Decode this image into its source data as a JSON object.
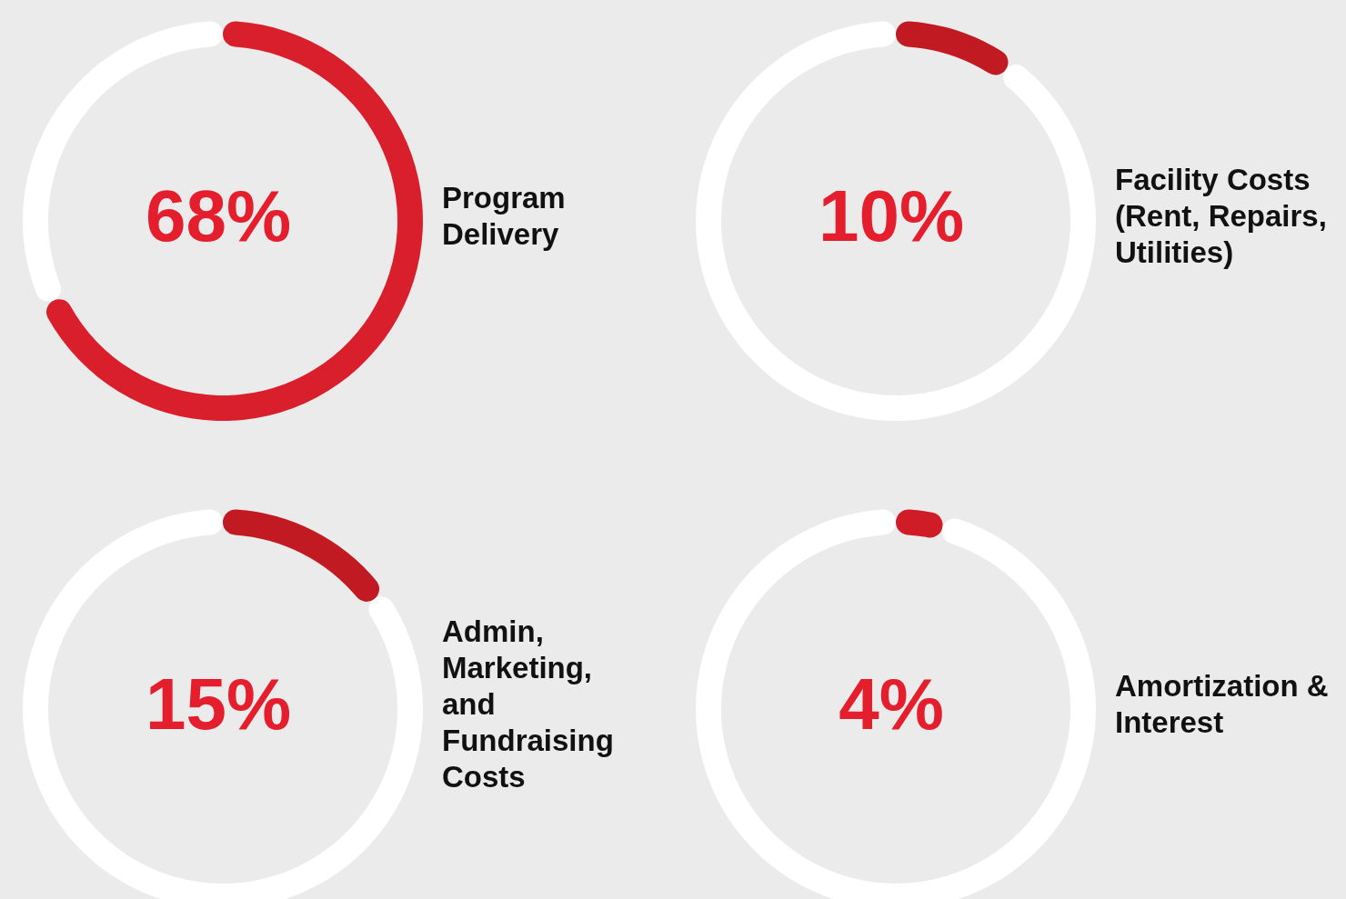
{
  "chart_data": [
    {
      "type": "donut",
      "title": "Program Delivery",
      "categories": [
        null,
        null
      ],
      "values": [
        68,
        32
      ],
      "colors": [
        "#d81f2b",
        "#ffffff"
      ],
      "annotations": [
        "68%"
      ]
    },
    {
      "type": "donut",
      "title": "Facility Costs (Rent, Repairs, Utilities)",
      "categories": [
        null,
        null
      ],
      "values": [
        10,
        90
      ],
      "colors": [
        "#c11a22",
        "#ffffff"
      ],
      "annotations": [
        "10%"
      ]
    },
    {
      "type": "donut",
      "title": "Admin, Marketing, and Fundraising Costs",
      "categories": [
        null,
        null
      ],
      "values": [
        15,
        85
      ],
      "colors": [
        "#c11a22",
        "#ffffff"
      ],
      "annotations": [
        "15%"
      ]
    },
    {
      "type": "donut",
      "title": "Amortization & Interest",
      "categories": [
        null,
        null
      ],
      "values": [
        4,
        96
      ],
      "colors": [
        "#d01c26",
        "#ffffff"
      ],
      "annotations": [
        "4%"
      ]
    }
  ]
}
